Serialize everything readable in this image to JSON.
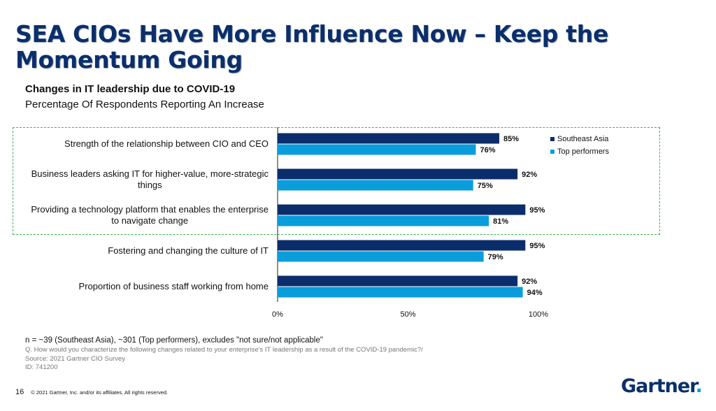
{
  "header": {
    "title": "SEA CIOs Have More Influence Now – Keep the Momentum Going",
    "subtitle": "Changes in IT leadership due to COVID-19",
    "subtitle2": "Percentage Of Respondents Reporting An Increase"
  },
  "colors": {
    "series_dark": "#0b2d6b",
    "series_light": "#0a9ddb",
    "highlight": "#3bb54a"
  },
  "chart_data": {
    "type": "bar",
    "orientation": "horizontal",
    "categories": [
      [
        "Strength of the relationship between CIO and CEO"
      ],
      [
        "Business leaders asking IT for higher-value, more-strategic",
        "things"
      ],
      [
        "Providing a technology platform that enables the enterprise",
        "to navigate change"
      ],
      [
        "Fostering and changing the culture of IT"
      ],
      [
        "Proportion of business staff working from home"
      ]
    ],
    "series": [
      {
        "name": "Southeast Asia",
        "values": [
          85,
          92,
          95,
          95,
          92
        ]
      },
      {
        "name": "Top performers",
        "values": [
          76,
          75,
          81,
          79,
          94
        ]
      }
    ],
    "xlim": [
      0,
      100
    ],
    "xticks": [
      "0%",
      "50%",
      "100%"
    ],
    "value_suffix": "%",
    "legend_position": "top-right",
    "grid": false
  },
  "notes": {
    "n": "n = ~39 (Southeast Asia), ~301 (Top performers), excludes \"not sure/not applicable\"",
    "question": "Q. How would you characterize the following changes related to your enterprise's IT leadership as a result of the COVID-19 pandemic?/",
    "source": "Source: 2021 Gartner CIO Survey",
    "id": "ID: 741200"
  },
  "footer": {
    "page": "16",
    "copyright": "© 2021 Gartner, Inc. and/or its affiliates. All rights reserved.",
    "logo_text": "Gartner",
    "logo_dot": "."
  }
}
